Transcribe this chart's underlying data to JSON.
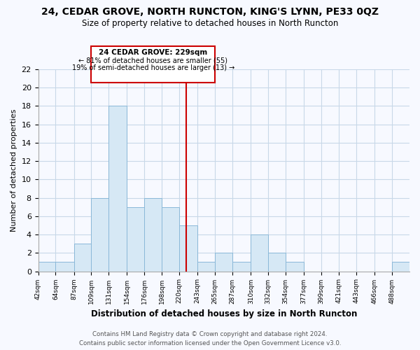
{
  "title": "24, CEDAR GROVE, NORTH RUNCTON, KING'S LYNN, PE33 0QZ",
  "subtitle": "Size of property relative to detached houses in North Runcton",
  "xlabel": "Distribution of detached houses by size in North Runcton",
  "ylabel": "Number of detached properties",
  "bin_labels": [
    "42sqm",
    "64sqm",
    "87sqm",
    "109sqm",
    "131sqm",
    "154sqm",
    "176sqm",
    "198sqm",
    "220sqm",
    "243sqm",
    "265sqm",
    "287sqm",
    "310sqm",
    "332sqm",
    "354sqm",
    "377sqm",
    "399sqm",
    "421sqm",
    "443sqm",
    "466sqm",
    "488sqm"
  ],
  "bin_edges": [
    42,
    64,
    87,
    109,
    131,
    154,
    176,
    198,
    220,
    243,
    265,
    287,
    310,
    332,
    354,
    377,
    399,
    421,
    443,
    466,
    488,
    510
  ],
  "counts": [
    1,
    1,
    3,
    8,
    18,
    7,
    8,
    7,
    5,
    1,
    2,
    1,
    4,
    2,
    1,
    0,
    0,
    0,
    0,
    0,
    1
  ],
  "bar_color": "#d6e8f5",
  "bar_edge_color": "#8ab8d8",
  "reference_line_x": 229,
  "reference_line_color": "#cc0000",
  "annotation_title": "24 CEDAR GROVE: 229sqm",
  "annotation_line1": "← 81% of detached houses are smaller (55)",
  "annotation_line2": "19% of semi-detached houses are larger (13) →",
  "annotation_box_facecolor": "#ffffff",
  "annotation_box_edgecolor": "#cc0000",
  "ylim": [
    0,
    22
  ],
  "yticks": [
    0,
    2,
    4,
    6,
    8,
    10,
    12,
    14,
    16,
    18,
    20,
    22
  ],
  "footer_line1": "Contains HM Land Registry data © Crown copyright and database right 2024.",
  "footer_line2": "Contains public sector information licensed under the Open Government Licence v3.0.",
  "bg_color": "#f7f9ff",
  "grid_color": "#c8d8e8"
}
